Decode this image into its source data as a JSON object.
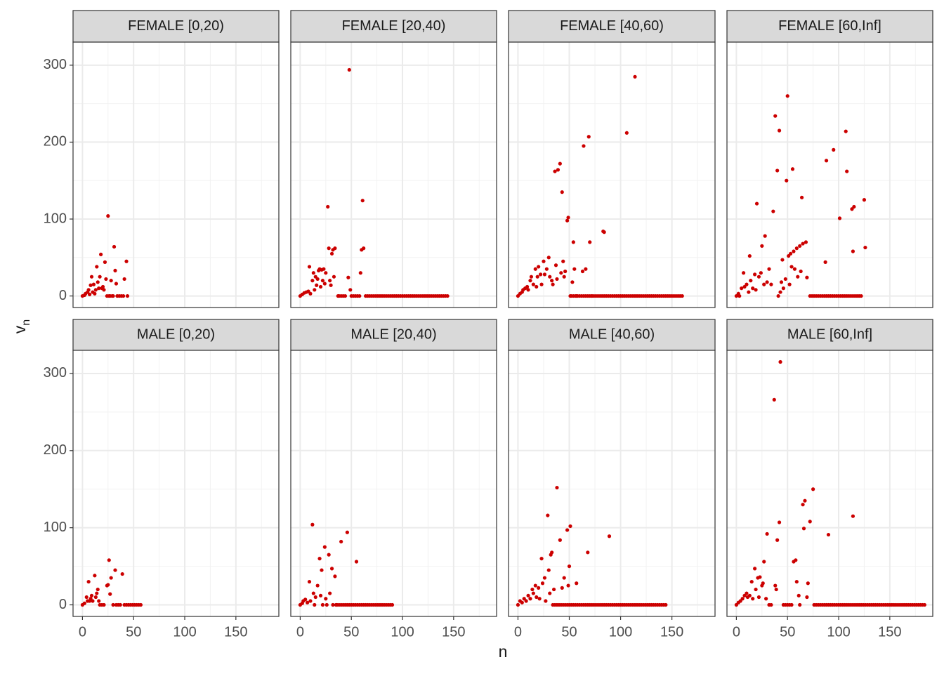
{
  "chart_data": {
    "type": "scatter",
    "x_label": "n",
    "y_label": "v",
    "y_label_subscript": "n",
    "color": "#cc0000",
    "grid": true,
    "xlim": [
      -9.2,
      192
    ],
    "ylim": [
      -15,
      330
    ],
    "xticks": [
      0,
      50,
      100,
      150
    ],
    "yticks": [
      0,
      100,
      200,
      300
    ],
    "xminor": [
      25,
      75,
      125,
      175
    ],
    "yminor": [
      50,
      150,
      250
    ],
    "facets": [
      {
        "label": "FEMALE [0,20)",
        "x": [
          0,
          2,
          3,
          5,
          6,
          7,
          8,
          9,
          10,
          11,
          12,
          13,
          14,
          15,
          16,
          17,
          18,
          19,
          20,
          21,
          22,
          23,
          24,
          25,
          26,
          27,
          28,
          29,
          30,
          31,
          32,
          33,
          34,
          36,
          38,
          40,
          41,
          43,
          44
        ],
        "y": [
          0,
          1,
          3,
          5,
          8,
          2,
          14,
          25,
          5,
          15,
          3,
          8,
          38,
          18,
          10,
          25,
          54,
          10,
          12,
          8,
          44,
          22,
          0,
          104,
          0,
          0,
          20,
          0,
          0,
          64,
          33,
          16,
          0,
          0,
          0,
          0,
          22,
          45,
          0
        ]
      },
      {
        "label": "FEMALE [20,40)",
        "x": [
          0,
          2,
          4,
          6,
          8,
          9,
          10,
          12,
          13,
          14,
          15,
          16,
          17,
          18,
          19,
          20,
          21,
          22,
          23,
          24,
          25,
          27,
          28,
          29,
          30,
          31,
          32,
          33,
          34,
          37,
          38,
          40,
          42,
          44,
          47,
          48,
          49,
          50,
          52,
          54,
          56,
          58,
          59,
          60,
          61,
          62,
          64,
          66,
          68,
          70,
          72,
          74,
          76,
          78,
          80,
          82,
          84,
          86,
          88,
          90,
          92,
          94,
          96,
          98,
          100,
          102,
          104,
          106,
          108,
          110,
          112,
          114,
          116,
          118,
          120,
          122,
          124,
          126,
          128,
          130,
          132,
          134,
          136,
          138,
          140,
          142,
          144
        ],
        "y": [
          0,
          2,
          4,
          5,
          6,
          38,
          3,
          20,
          30,
          8,
          25,
          14,
          22,
          33,
          35,
          12,
          34,
          20,
          35,
          16,
          30,
          116,
          62,
          20,
          14,
          55,
          60,
          25,
          62,
          0,
          0,
          0,
          0,
          0,
          24,
          294,
          8,
          0,
          0,
          0,
          0,
          0,
          30,
          60,
          124,
          62,
          0,
          0,
          0,
          0,
          0,
          0,
          0,
          0,
          0,
          0,
          0,
          0,
          0,
          0,
          0,
          0,
          0,
          0,
          0,
          0,
          0,
          0,
          0,
          0,
          0,
          0,
          0,
          0,
          0,
          0,
          0,
          0,
          0,
          0,
          0,
          0,
          0,
          0,
          0,
          0,
          0
        ]
      },
      {
        "label": "FEMALE [40,60)",
        "x": [
          0,
          2,
          4,
          5,
          7,
          9,
          10,
          12,
          13,
          15,
          17,
          18,
          19,
          20,
          22,
          23,
          25,
          26,
          28,
          30,
          31,
          33,
          34,
          36,
          37,
          38,
          39,
          41,
          42,
          43,
          44,
          45,
          46,
          48,
          49,
          51,
          53,
          54,
          55,
          57,
          63,
          64,
          66,
          69,
          70,
          72,
          83,
          84,
          106,
          114,
          52,
          54,
          56,
          58,
          60,
          62,
          64,
          66,
          68,
          70,
          72,
          74,
          76,
          78,
          80,
          82,
          84,
          86,
          88,
          90,
          92,
          94,
          96,
          98,
          100,
          102,
          104,
          106,
          108,
          110,
          112,
          114,
          116,
          118,
          120,
          122,
          124,
          126,
          128,
          130,
          132,
          134,
          136,
          138,
          140,
          142,
          144,
          146,
          148,
          150,
          152,
          154,
          156,
          158,
          160
        ],
        "y": [
          0,
          3,
          5,
          8,
          10,
          12,
          8,
          20,
          25,
          15,
          35,
          12,
          25,
          38,
          28,
          15,
          45,
          28,
          35,
          50,
          25,
          20,
          15,
          162,
          40,
          22,
          164,
          172,
          30,
          135,
          45,
          25,
          32,
          98,
          102,
          0,
          18,
          70,
          35,
          0,
          32,
          195,
          35,
          207,
          70,
          0,
          84,
          83,
          212,
          285,
          0,
          0,
          0,
          0,
          0,
          0,
          0,
          0,
          0,
          0,
          0,
          0,
          0,
          0,
          0,
          0,
          0,
          0,
          0,
          0,
          0,
          0,
          0,
          0,
          0,
          0,
          0,
          0,
          0,
          0,
          0,
          0,
          0,
          0,
          0,
          0,
          0,
          0,
          0,
          0,
          0,
          0,
          0,
          0,
          0,
          0,
          0,
          0,
          0,
          0,
          0,
          0,
          0,
          0,
          0
        ]
      },
      {
        "label": "FEMALE [60,Inf]",
        "x": [
          0,
          2,
          3,
          5,
          7,
          8,
          10,
          12,
          13,
          14,
          16,
          18,
          19,
          20,
          22,
          24,
          25,
          27,
          28,
          30,
          32,
          34,
          36,
          38,
          40,
          41,
          42,
          43,
          44,
          45,
          46,
          48,
          49,
          50,
          51,
          52,
          53,
          54,
          55,
          56,
          57,
          59,
          60,
          62,
          63,
          64,
          65,
          68,
          69,
          72,
          87,
          88,
          95,
          101,
          107,
          108,
          113,
          114,
          115,
          125,
          126,
          74,
          76,
          78,
          80,
          82,
          84,
          86,
          88,
          90,
          92,
          94,
          96,
          98,
          100,
          102,
          104,
          106,
          108,
          110,
          112,
          114,
          116,
          118,
          120,
          122
        ],
        "y": [
          0,
          3,
          0,
          10,
          30,
          12,
          15,
          5,
          52,
          20,
          10,
          28,
          8,
          120,
          25,
          30,
          65,
          15,
          78,
          18,
          35,
          15,
          110,
          234,
          163,
          0,
          215,
          5,
          18,
          47,
          10,
          22,
          150,
          260,
          52,
          15,
          55,
          38,
          165,
          58,
          35,
          62,
          25,
          65,
          32,
          128,
          68,
          70,
          24,
          0,
          44,
          176,
          190,
          101,
          214,
          162,
          113,
          58,
          116,
          125,
          63,
          0,
          0,
          0,
          0,
          0,
          0,
          0,
          0,
          0,
          0,
          0,
          0,
          0,
          0,
          0,
          0,
          0,
          0,
          0,
          0,
          0,
          0,
          0,
          0,
          0
        ]
      },
      {
        "label": "MALE [0,20)",
        "x": [
          0,
          2,
          4,
          5,
          6,
          7,
          8,
          9,
          10,
          12,
          13,
          14,
          15,
          16,
          17,
          19,
          21,
          24,
          25,
          26,
          27,
          28,
          30,
          32,
          33,
          35,
          37,
          39,
          41,
          43,
          45,
          47,
          49,
          51,
          53,
          55,
          57
        ],
        "y": [
          0,
          2,
          10,
          5,
          30,
          5,
          8,
          12,
          5,
          38,
          10,
          15,
          20,
          5,
          0,
          0,
          0,
          25,
          26,
          58,
          14,
          35,
          0,
          45,
          0,
          0,
          0,
          40,
          0,
          0,
          0,
          0,
          0,
          0,
          0,
          0,
          0
        ]
      },
      {
        "label": "MALE [20,40)",
        "x": [
          0,
          2,
          3,
          5,
          7,
          9,
          10,
          12,
          13,
          14,
          15,
          17,
          19,
          20,
          21,
          22,
          24,
          25,
          26,
          28,
          29,
          31,
          32,
          34,
          35,
          40,
          46,
          55,
          36,
          38,
          40,
          42,
          44,
          46,
          48,
          50,
          52,
          54,
          56,
          58,
          60,
          62,
          64,
          66,
          68,
          70,
          72,
          74,
          76,
          78,
          80,
          82,
          84,
          86,
          88,
          90
        ],
        "y": [
          0,
          2,
          5,
          7,
          3,
          30,
          5,
          104,
          15,
          0,
          10,
          25,
          60,
          12,
          45,
          0,
          75,
          8,
          0,
          65,
          15,
          47,
          0,
          37,
          0,
          82,
          94,
          56,
          0,
          0,
          0,
          0,
          0,
          0,
          0,
          0,
          0,
          0,
          0,
          0,
          0,
          0,
          0,
          0,
          0,
          0,
          0,
          0,
          0,
          0,
          0,
          0,
          0,
          0,
          0,
          0
        ]
      },
      {
        "label": "MALE [40,60)",
        "x": [
          0,
          2,
          4,
          6,
          8,
          10,
          12,
          14,
          15,
          17,
          18,
          20,
          21,
          23,
          24,
          26,
          27,
          29,
          30,
          31,
          32,
          33,
          35,
          38,
          41,
          43,
          45,
          48,
          49,
          50,
          51,
          57,
          68,
          89,
          34,
          36,
          38,
          40,
          42,
          44,
          46,
          48,
          50,
          52,
          54,
          56,
          58,
          60,
          62,
          64,
          66,
          68,
          70,
          72,
          74,
          76,
          78,
          80,
          82,
          84,
          86,
          88,
          90,
          92,
          94,
          96,
          98,
          100,
          102,
          104,
          106,
          108,
          110,
          112,
          114,
          116,
          118,
          120,
          122,
          124,
          126,
          128,
          130,
          132,
          134,
          136,
          138,
          140,
          142,
          144
        ],
        "y": [
          0,
          5,
          3,
          8,
          5,
          12,
          8,
          20,
          15,
          25,
          10,
          22,
          8,
          60,
          28,
          35,
          5,
          116,
          45,
          15,
          65,
          68,
          20,
          152,
          84,
          22,
          35,
          97,
          25,
          50,
          102,
          28,
          68,
          89,
          0,
          0,
          0,
          0,
          0,
          0,
          0,
          0,
          0,
          0,
          0,
          0,
          0,
          0,
          0,
          0,
          0,
          0,
          0,
          0,
          0,
          0,
          0,
          0,
          0,
          0,
          0,
          0,
          0,
          0,
          0,
          0,
          0,
          0,
          0,
          0,
          0,
          0,
          0,
          0,
          0,
          0,
          0,
          0,
          0,
          0,
          0,
          0,
          0,
          0,
          0,
          0,
          0,
          0,
          0,
          0
        ]
      },
      {
        "label": "MALE [60,Inf]",
        "x": [
          0,
          2,
          4,
          6,
          8,
          10,
          11,
          13,
          15,
          16,
          18,
          19,
          21,
          22,
          23,
          25,
          26,
          27,
          29,
          30,
          37,
          38,
          39,
          40,
          42,
          43,
          56,
          58,
          59,
          61,
          65,
          66,
          67,
          69,
          70,
          72,
          75,
          90,
          114,
          32,
          34,
          46,
          48,
          50,
          52,
          54,
          62,
          76,
          78,
          80,
          82,
          84,
          86,
          88,
          90,
          92,
          94,
          96,
          98,
          100,
          102,
          104,
          106,
          108,
          110,
          112,
          114,
          116,
          118,
          120,
          122,
          124,
          126,
          128,
          130,
          132,
          134,
          136,
          138,
          140,
          142,
          144,
          146,
          148,
          150,
          152,
          154,
          156,
          158,
          160,
          162,
          164,
          166,
          168,
          170,
          172,
          174,
          176,
          178,
          180,
          182,
          184
        ],
        "y": [
          0,
          3,
          5,
          8,
          12,
          15,
          10,
          12,
          30,
          8,
          47,
          20,
          35,
          10,
          36,
          25,
          28,
          56,
          8,
          92,
          266,
          25,
          20,
          84,
          107,
          315,
          56,
          58,
          30,
          12,
          130,
          99,
          135,
          10,
          28,
          108,
          150,
          91,
          115,
          0,
          0,
          0,
          0,
          0,
          0,
          0,
          0,
          0,
          0,
          0,
          0,
          0,
          0,
          0,
          0,
          0,
          0,
          0,
          0,
          0,
          0,
          0,
          0,
          0,
          0,
          0,
          0,
          0,
          0,
          0,
          0,
          0,
          0,
          0,
          0,
          0,
          0,
          0,
          0,
          0,
          0,
          0,
          0,
          0,
          0,
          0,
          0,
          0,
          0,
          0,
          0,
          0,
          0,
          0,
          0,
          0,
          0,
          0,
          0,
          0,
          0,
          0
        ]
      }
    ]
  }
}
